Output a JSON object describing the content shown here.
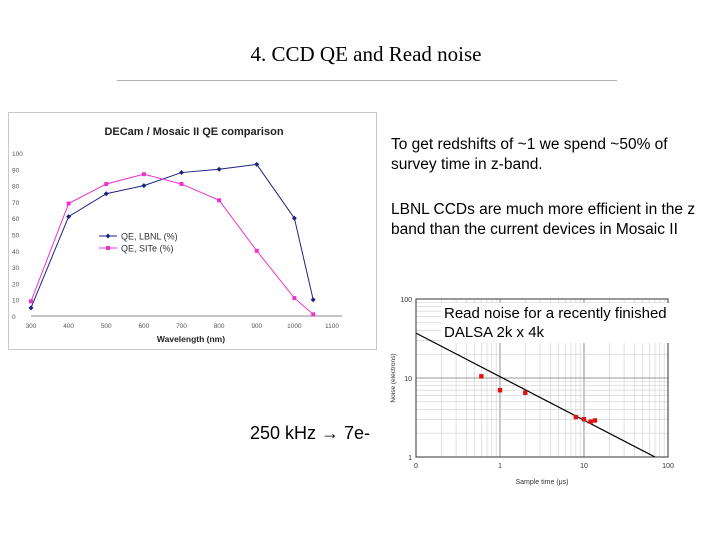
{
  "slide": {
    "title": "4. CCD QE and Read noise"
  },
  "text": {
    "paragraph_1": "To get redshifts of ~1 we spend ~50% of survey time in z-band.",
    "paragraph_2": "LBNL CCDs are much more efficient in the z band than the current devices in Mosaic II",
    "noise_callout": "Read noise for a recently finished DALSA 2k x 4k",
    "readout_rate": "250 kHz → 7e-"
  },
  "colors": {
    "lbnl": "#1a237e",
    "site": "#ee33cc",
    "noise_points": "#e01010",
    "noise_line": "#000000"
  },
  "chart_data": [
    {
      "type": "line",
      "title": "DECam / Mosaic II QE comparison",
      "xlabel": "Wavelength (nm)",
      "ylabel": "",
      "xlim": [
        300,
        1100
      ],
      "ylim": [
        0,
        100
      ],
      "xticks": [
        "300",
        "400",
        "500",
        "600",
        "700",
        "800",
        "900",
        "1000",
        "1100"
      ],
      "yticks": [
        "0",
        "10",
        "20",
        "30",
        "40",
        "50",
        "60",
        "70",
        "80",
        "90",
        "100"
      ],
      "legend_position": "left-center",
      "grid": false,
      "series": [
        {
          "name": "QE, LBNL (%)",
          "marker": "diamond",
          "color": "#1a237e",
          "x": [
            300,
            400,
            500,
            600,
            700,
            800,
            900,
            1000,
            1050
          ],
          "y": [
            5,
            61,
            75,
            80,
            88,
            90,
            93,
            60,
            10
          ]
        },
        {
          "name": "QE, SITe (%)",
          "marker": "square",
          "color": "#ee33cc",
          "x": [
            300,
            400,
            500,
            600,
            700,
            800,
            900,
            1000,
            1050
          ],
          "y": [
            9,
            69,
            81,
            87,
            81,
            71,
            40,
            11,
            1
          ]
        }
      ]
    },
    {
      "type": "scatter",
      "title": "",
      "xlabel": "Sample time (μs)",
      "ylabel": "Noise (electrons)",
      "xscale": "log",
      "yscale": "log",
      "xlim": [
        0.1,
        100
      ],
      "ylim": [
        1,
        100
      ],
      "xticks": [
        "0",
        "1",
        "10",
        "100"
      ],
      "yticks": [
        "1",
        "10",
        "100"
      ],
      "grid": true,
      "points": {
        "x": [
          0.6,
          1.0,
          2.0,
          8.0,
          10.0,
          12.0,
          13.5
        ],
        "y": [
          10.5,
          7.0,
          6.5,
          3.2,
          3.0,
          2.8,
          2.9
        ]
      },
      "fit_line": {
        "x": [
          0.1,
          70
        ],
        "y": [
          37,
          1
        ]
      }
    }
  ]
}
